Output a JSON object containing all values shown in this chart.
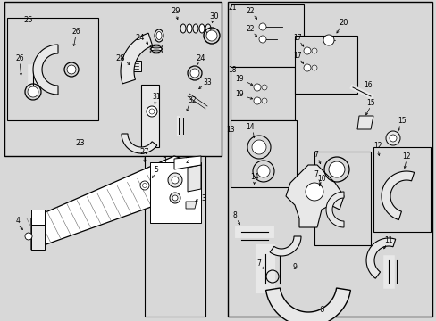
{
  "bg_color": "#d8d8d8",
  "fig_width": 4.89,
  "fig_height": 3.6,
  "dpi": 100,
  "white": "#ffffff",
  "light_gray": "#e8e8e8",
  "mid_gray": "#c0c0c0",
  "dark_gray": "#888888"
}
